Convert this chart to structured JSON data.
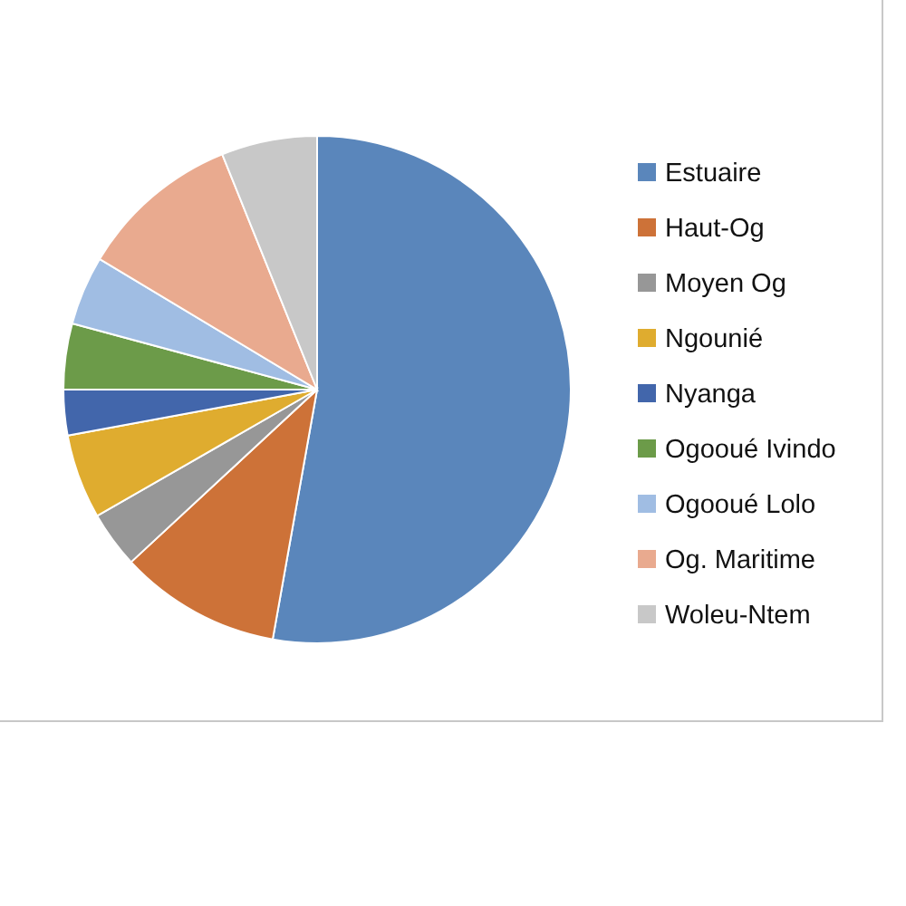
{
  "chart_data": {
    "type": "pie",
    "categories": [
      "Estuaire",
      "Haut-Og",
      "Moyen Og",
      "Ngounié",
      "Nyanga",
      "Ogooué Ivindo",
      "Ogooué Lolo",
      "Og. Maritime",
      "Woleu-Ntem"
    ],
    "values": [
      52.8,
      10.3,
      3.6,
      5.4,
      2.9,
      4.2,
      4.4,
      10.3,
      6.1
    ],
    "colors": [
      "#5a86bb",
      "#cd7238",
      "#979797",
      "#dfac2f",
      "#4266ab",
      "#6c9b49",
      "#a0bde3",
      "#e9aa8f",
      "#c8c8c8"
    ],
    "legend": "right"
  }
}
